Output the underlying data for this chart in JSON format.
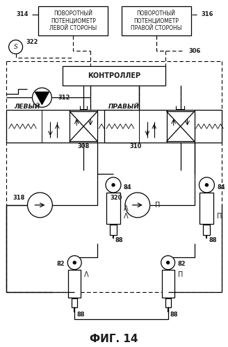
{
  "title": "ФИГ. 14",
  "bg_color": "#ffffff",
  "text_color": "#1a1a1a",
  "box_left_label": "ПОВОРОТНЫЙ\nПОТЕНЦИОМЕТР\nЛЕВОЙ СТОРОНЫ",
  "box_right_label": "ПОВОРОТНЫЙ\nПОТЕНЦИОМЕТР\nПРАВОЙ СТОРОНЫ",
  "controller_label": "КОНТРОЛЛЕР",
  "left_label": "ЛЕВЫЙ",
  "right_label": "ПРАВЫЙ",
  "label_314": "314",
  "label_316": "316",
  "label_322": "322",
  "label_306": "306",
  "label_312": "312",
  "label_308": "308",
  "label_310": "310",
  "label_318": "318",
  "label_320": "320",
  "label_84": "84",
  "label_82": "82",
  "label_88": "88",
  "label_S": "S"
}
